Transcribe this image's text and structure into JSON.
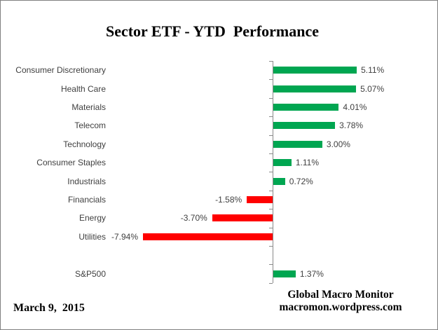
{
  "title": "Sector ETF - YTD  Performance",
  "footer": {
    "date": "March 9,  2015",
    "source_line1": "Global Macro Monitor",
    "source_line2": "macromon.wordpress.com"
  },
  "colors": {
    "positive": "#00A651",
    "negative": "#FF0000",
    "axis": "#8A8A8A",
    "label_text": "#3F3F3F"
  },
  "chart_data": {
    "type": "bar",
    "orientation": "horizontal",
    "title": "Sector ETF - YTD  Performance",
    "xlabel": "",
    "ylabel": "",
    "xlim": [
      -10,
      10
    ],
    "grid": false,
    "legend": false,
    "value_axis_labels_visible": false,
    "positive_color": "#00A651",
    "negative_color": "#FF0000",
    "categories": [
      "Consumer Discretionary",
      "Health Care",
      "Materials",
      "Telecom",
      "Technology",
      "Consumer Staples",
      "Industrials",
      "Financials",
      "Energy",
      "Utilities",
      "S&P500"
    ],
    "values": [
      5.11,
      5.07,
      4.01,
      3.78,
      3.0,
      1.11,
      0.72,
      -1.58,
      -3.7,
      -7.94,
      1.37
    ],
    "bars": [
      {
        "category": "Consumer Discretionary",
        "value": 5.11,
        "label": "5.11%"
      },
      {
        "category": "Health Care",
        "value": 5.07,
        "label": "5.07%"
      },
      {
        "category": "Materials",
        "value": 4.01,
        "label": "4.01%"
      },
      {
        "category": "Telecom",
        "value": 3.78,
        "label": "3.78%"
      },
      {
        "category": "Technology",
        "value": 3.0,
        "label": "3.00%"
      },
      {
        "category": "Consumer Staples",
        "value": 1.11,
        "label": "1.11%"
      },
      {
        "category": "Industrials",
        "value": 0.72,
        "label": "0.72%"
      },
      {
        "category": "Financials",
        "value": -1.58,
        "label": "-1.58%"
      },
      {
        "category": "Energy",
        "value": -3.7,
        "label": "-3.70%"
      },
      {
        "category": "Utilities",
        "value": -7.94,
        "label": "-7.94%"
      },
      {
        "category": "",
        "value": null,
        "label": ""
      },
      {
        "category": "S&P500",
        "value": 1.37,
        "label": "1.37%"
      }
    ]
  }
}
